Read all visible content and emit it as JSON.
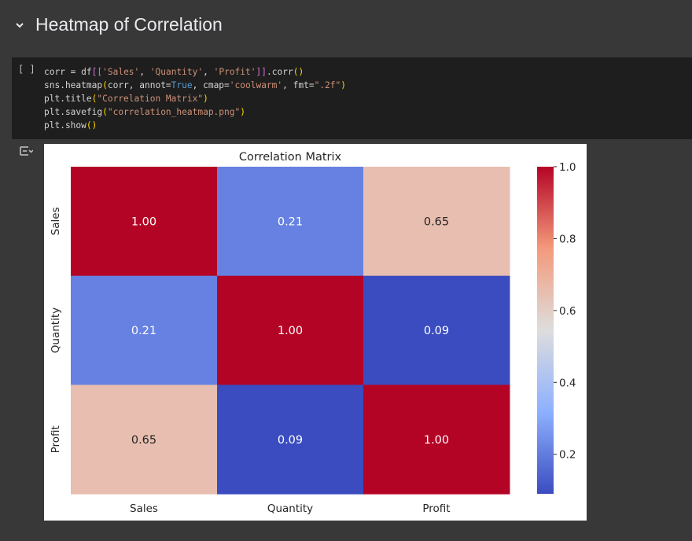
{
  "section": {
    "title": "Heatmap of Correlation",
    "chevron_icon": "chevron-down-icon"
  },
  "cell": {
    "run_label": "[ ]",
    "code_lines": [
      "corr = df[['Sales', 'Quantity', 'Profit']].corr()",
      "sns.heatmap(corr, annot=True, cmap='coolwarm', fmt=\".2f\")",
      "plt.title(\"Correlation Matrix\")",
      "plt.savefig(\"correlation_heatmap.png\")",
      "plt.show()"
    ],
    "output_icon": "output-toggle-icon"
  },
  "colors": {
    "page_bg": "#383838",
    "cell_bg": "#1e1e1e",
    "figure_bg": "#ffffff"
  },
  "chart_data": {
    "type": "heatmap",
    "title": "Correlation Matrix",
    "x_labels": [
      "Sales",
      "Quantity",
      "Profit"
    ],
    "y_labels": [
      "Sales",
      "Quantity",
      "Profit"
    ],
    "values": [
      [
        1.0,
        0.21,
        0.65
      ],
      [
        0.21,
        1.0,
        0.09
      ],
      [
        0.65,
        0.09,
        1.0
      ]
    ],
    "annotation_format": ".2f",
    "colormap": "coolwarm",
    "colorbar": {
      "min": 0.09,
      "max": 1.0,
      "ticks": [
        1.0,
        0.8,
        0.6,
        0.4,
        0.2
      ],
      "tick_labels": [
        "1.0",
        "0.8",
        "0.6",
        "0.4",
        "0.2"
      ]
    }
  }
}
